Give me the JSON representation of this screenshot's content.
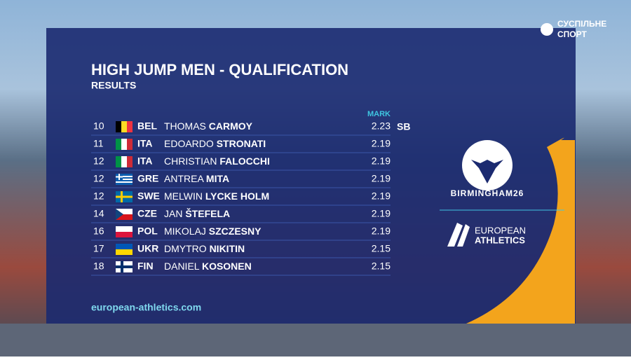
{
  "broadcaster": {
    "line1": "СУСПІЛЬНЕ",
    "line2": "СПОРТ"
  },
  "header": {
    "title": "HIGH JUMP MEN - QUALIFICATION",
    "subtitle": "RESULTS",
    "mark_column": "MARK"
  },
  "table": {
    "rows": [
      {
        "rank": 10,
        "country": "BEL",
        "first": "THOMAS",
        "last": "CARMOY",
        "mark": 2.23,
        "note": "SB"
      },
      {
        "rank": 11,
        "country": "ITA",
        "first": "EDOARDO",
        "last": "STRONATI",
        "mark": 2.19
      },
      {
        "rank": 12,
        "country": "ITA",
        "first": "CHRISTIAN",
        "last": "FALOCCHI",
        "mark": 2.19
      },
      {
        "rank": 12,
        "country": "GRE",
        "first": "ANTREA",
        "last": "MITA",
        "mark": 2.19
      },
      {
        "rank": 12,
        "country": "SWE",
        "first": "MELWIN",
        "last": "LYCKE HOLM",
        "mark": 2.19
      },
      {
        "rank": 14,
        "country": "CZE",
        "first": "JAN",
        "last": "ŠTEFELA",
        "mark": 2.19
      },
      {
        "rank": 16,
        "country": "POL",
        "first": "MIKOLAJ",
        "last": "SZCZESNY",
        "mark": 2.19
      },
      {
        "rank": 17,
        "country": "UKR",
        "first": "DMYTRO",
        "last": "NIKITIN",
        "mark": 2.15
      },
      {
        "rank": 18,
        "country": "FIN",
        "first": "DANIEL",
        "last": "KOSONEN",
        "mark": 2.15
      }
    ]
  },
  "sponsor": {
    "event": "BIRMINGHAM26",
    "org_line1": "EUROPEAN",
    "org_line2": "ATHLETICS"
  },
  "footer": {
    "url": "european-athletics.com"
  }
}
